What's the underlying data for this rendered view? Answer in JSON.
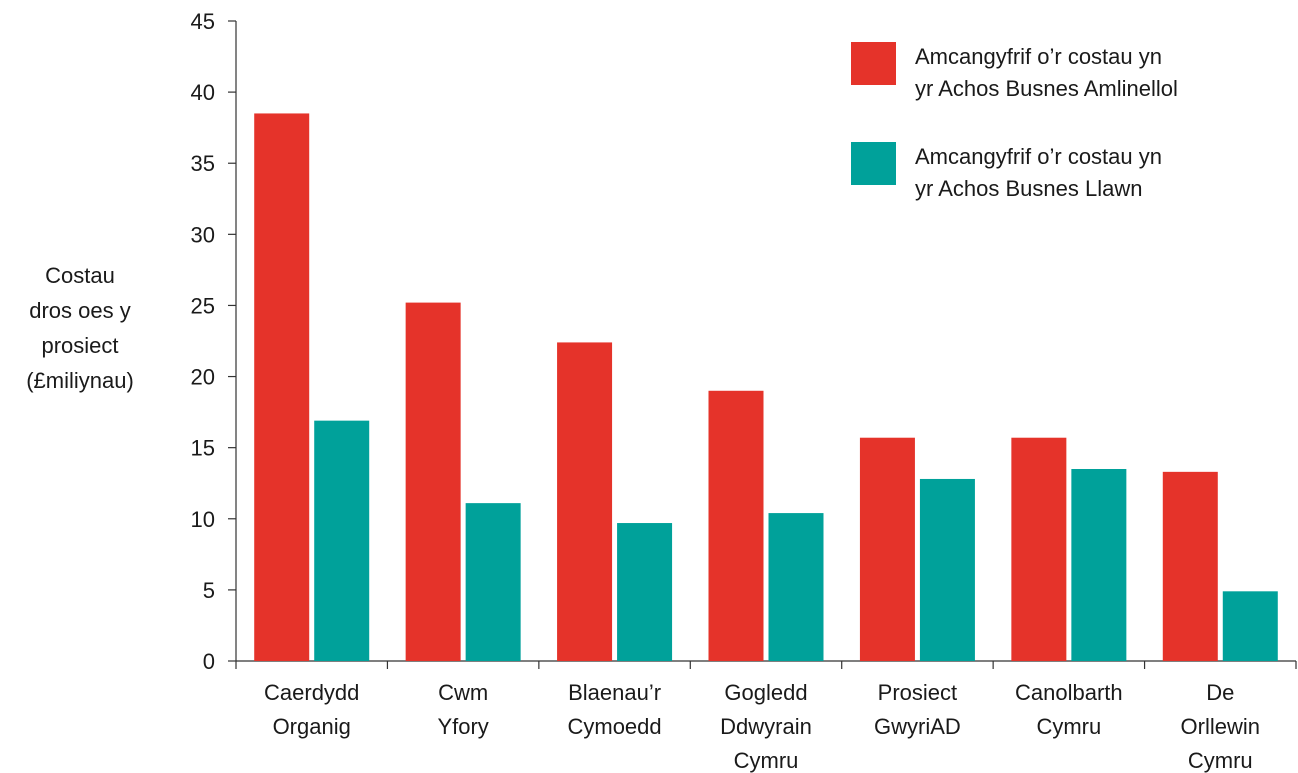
{
  "chart_data": {
    "type": "bar",
    "ylabel": [
      "Costau",
      "dros oes y",
      "prosiect",
      "(£miliynau)"
    ],
    "xlabel": "",
    "ylim": [
      0,
      45
    ],
    "yticks": [
      0,
      5,
      10,
      15,
      20,
      25,
      30,
      35,
      40,
      45
    ],
    "grid": false,
    "legend_position": "top-right",
    "categories": [
      [
        "Caerdydd",
        "Organig"
      ],
      [
        "Cwm",
        "Yfory"
      ],
      [
        "Blaenau’r",
        "Cymoedd"
      ],
      [
        "Gogledd",
        "Ddwyrain",
        "Cymru"
      ],
      [
        "Prosiect",
        "GwyriAD"
      ],
      [
        "Canolbarth",
        "Cymru"
      ],
      [
        "De",
        "Orllewin",
        "Cymru"
      ]
    ],
    "series": [
      {
        "name": [
          "Amcangyfrif o’r costau yn",
          "yr Achos Busnes Amlinellol"
        ],
        "color": "#e5332a",
        "values": [
          38.5,
          25.2,
          22.4,
          19.0,
          15.7,
          15.7,
          13.3
        ]
      },
      {
        "name": [
          "Amcangyfrif o’r costau yn",
          "yr Achos Busnes Llawn"
        ],
        "color": "#00a19a",
        "values": [
          16.9,
          11.1,
          9.7,
          10.4,
          12.8,
          13.5,
          4.9
        ]
      }
    ]
  }
}
